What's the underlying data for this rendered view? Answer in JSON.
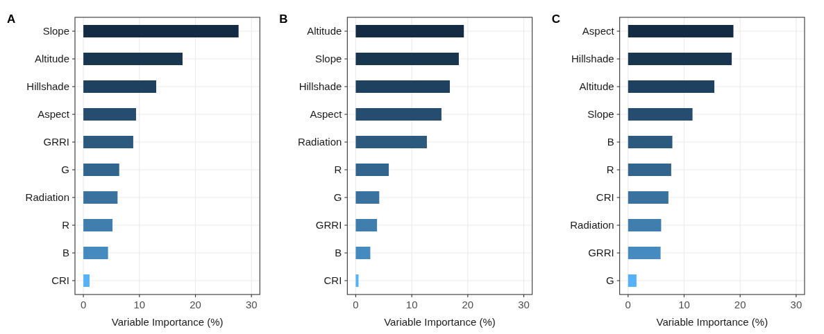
{
  "chart_data": [
    {
      "type": "bar",
      "title": "A",
      "orientation": "horizontal",
      "xlabel": "Variable Importance (%)",
      "categories": [
        "Slope",
        "Altitude",
        "Hillshade",
        "Aspect",
        "GRRI",
        "G",
        "Radiation",
        "R",
        "B",
        "CRI"
      ],
      "values": [
        27.7,
        17.7,
        13.0,
        9.4,
        8.9,
        6.4,
        6.1,
        5.2,
        4.4,
        1.1
      ],
      "colors": [
        "#132b43",
        "#193651",
        "#1f4160",
        "#264d6f",
        "#2c597e",
        "#32658e",
        "#39729e",
        "#407eae",
        "#468bbf",
        "#56b1f7"
      ],
      "xlim": [
        -1.5,
        31.5
      ],
      "xticks": [
        0,
        10,
        20,
        30
      ],
      "grid": true
    },
    {
      "type": "bar",
      "title": "B",
      "orientation": "horizontal",
      "xlabel": "Variable Importance (%)",
      "categories": [
        "Altitude",
        "Slope",
        "Hillshade",
        "Aspect",
        "Radiation",
        "R",
        "G",
        "GRRI",
        "B",
        "CRI"
      ],
      "values": [
        19.3,
        18.4,
        16.8,
        15.3,
        12.7,
        5.9,
        4.2,
        3.8,
        2.6,
        0.5
      ],
      "colors": [
        "#132b43",
        "#193651",
        "#1f4160",
        "#264d6f",
        "#2c597e",
        "#32658e",
        "#39729e",
        "#407eae",
        "#468bbf",
        "#56b1f7"
      ],
      "xlim": [
        -1.5,
        31.5
      ],
      "xticks": [
        0,
        10,
        20,
        30
      ],
      "grid": true
    },
    {
      "type": "bar",
      "title": "C",
      "orientation": "horizontal",
      "xlabel": "Variable Importance (%)",
      "categories": [
        "Aspect",
        "Hillshade",
        "Altitude",
        "Slope",
        "B",
        "R",
        "CRI",
        "Radiation",
        "GRRI",
        "G"
      ],
      "values": [
        18.8,
        18.5,
        15.4,
        11.5,
        7.9,
        7.7,
        7.2,
        5.9,
        5.8,
        1.5
      ],
      "colors": [
        "#132b43",
        "#193651",
        "#1f4160",
        "#264d6f",
        "#2c597e",
        "#32658e",
        "#39729e",
        "#407eae",
        "#468bbf",
        "#56b1f7"
      ],
      "xlim": [
        -1.5,
        31.5
      ],
      "xticks": [
        0,
        10,
        20,
        30
      ],
      "grid": true
    }
  ]
}
